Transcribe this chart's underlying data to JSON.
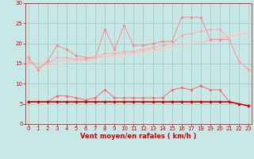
{
  "x": [
    0,
    1,
    2,
    3,
    4,
    5,
    6,
    7,
    8,
    9,
    10,
    11,
    12,
    13,
    14,
    15,
    16,
    17,
    18,
    19,
    20,
    21,
    22,
    23
  ],
  "lines": [
    {
      "label": "line1_spiky",
      "color": "#ff8888",
      "linewidth": 0.7,
      "marker": "D",
      "markersize": 1.8,
      "y": [
        16.5,
        13.5,
        15.5,
        19.5,
        18.5,
        17.0,
        16.5,
        16.5,
        23.5,
        18.5,
        24.5,
        19.5,
        19.5,
        20.0,
        20.5,
        20.5,
        26.5,
        26.5,
        26.5,
        21.0,
        21.0,
        21.0,
        15.5,
        13.5
      ]
    },
    {
      "label": "line2_smooth",
      "color": "#ffaaaa",
      "linewidth": 0.7,
      "marker": "D",
      "markersize": 1.8,
      "y": [
        15.5,
        14.0,
        15.0,
        16.5,
        16.5,
        16.0,
        16.0,
        16.5,
        17.5,
        17.5,
        18.0,
        18.0,
        18.5,
        19.0,
        19.5,
        20.0,
        22.0,
        22.5,
        23.0,
        23.5,
        23.5,
        21.0,
        15.5,
        13.5
      ]
    },
    {
      "label": "line3_trend1",
      "color": "#ffbbbb",
      "linewidth": 0.7,
      "marker": null,
      "markersize": 0,
      "y": [
        15.0,
        15.2,
        15.4,
        15.6,
        15.9,
        16.1,
        16.3,
        16.6,
        16.8,
        17.1,
        17.4,
        17.7,
        18.0,
        18.4,
        18.7,
        19.1,
        19.5,
        19.9,
        20.3,
        20.8,
        21.2,
        21.7,
        22.2,
        22.5
      ]
    },
    {
      "label": "line4_trend2",
      "color": "#ffcccc",
      "linewidth": 0.7,
      "marker": null,
      "markersize": 0,
      "y": [
        14.0,
        14.2,
        14.5,
        14.8,
        15.1,
        15.4,
        15.7,
        16.0,
        16.3,
        16.7,
        17.0,
        17.4,
        17.8,
        18.2,
        18.6,
        19.0,
        19.5,
        20.0,
        20.5,
        21.0,
        21.5,
        22.0,
        22.5,
        23.0
      ]
    },
    {
      "label": "line5_medium",
      "color": "#ff6666",
      "linewidth": 0.7,
      "marker": "D",
      "markersize": 1.8,
      "y": [
        5.5,
        5.5,
        5.5,
        7.0,
        7.0,
        6.5,
        6.0,
        6.5,
        8.5,
        6.5,
        6.5,
        6.5,
        6.5,
        6.5,
        6.5,
        8.5,
        9.0,
        8.5,
        9.5,
        8.5,
        8.5,
        5.5,
        5.0,
        4.5
      ]
    },
    {
      "label": "line6_flat1",
      "color": "#ff4444",
      "linewidth": 0.7,
      "marker": "D",
      "markersize": 1.8,
      "y": [
        5.5,
        5.5,
        5.5,
        5.5,
        5.5,
        5.5,
        5.5,
        5.5,
        5.5,
        5.5,
        5.5,
        5.5,
        5.5,
        5.5,
        5.5,
        5.5,
        5.5,
        5.5,
        5.5,
        5.5,
        5.5,
        5.5,
        5.0,
        4.5
      ]
    },
    {
      "label": "line7_trend_flat",
      "color": "#ee2222",
      "linewidth": 0.8,
      "marker": null,
      "markersize": 0,
      "y": [
        5.5,
        5.5,
        5.5,
        5.5,
        5.5,
        5.5,
        5.5,
        5.5,
        5.5,
        5.5,
        5.5,
        5.5,
        5.5,
        5.5,
        5.5,
        5.5,
        5.5,
        5.5,
        5.5,
        5.5,
        5.5,
        5.5,
        5.0,
        4.5
      ]
    },
    {
      "label": "line8_dark_flat",
      "color": "#cc0000",
      "linewidth": 1.0,
      "marker": "D",
      "markersize": 1.8,
      "y": [
        5.5,
        5.5,
        5.5,
        5.5,
        5.5,
        5.5,
        5.5,
        5.5,
        5.5,
        5.5,
        5.5,
        5.5,
        5.5,
        5.5,
        5.5,
        5.5,
        5.5,
        5.5,
        5.5,
        5.5,
        5.5,
        5.5,
        5.0,
        4.5
      ]
    }
  ],
  "xlabel": "Vent moyen/en rafales ( km/h )",
  "xlim": [
    -0.3,
    23.3
  ],
  "ylim": [
    0,
    30
  ],
  "yticks": [
    0,
    5,
    10,
    15,
    20,
    25,
    30
  ],
  "xticks": [
    0,
    1,
    2,
    3,
    4,
    5,
    6,
    7,
    8,
    9,
    10,
    11,
    12,
    13,
    14,
    15,
    16,
    17,
    18,
    19,
    20,
    21,
    22,
    23
  ],
  "bg_color": "#c8e8e8",
  "grid_color": "#99ccbb",
  "tick_color": "#cc0000",
  "label_color": "#cc0000",
  "xlabel_fontsize": 6,
  "tick_fontsize": 5
}
